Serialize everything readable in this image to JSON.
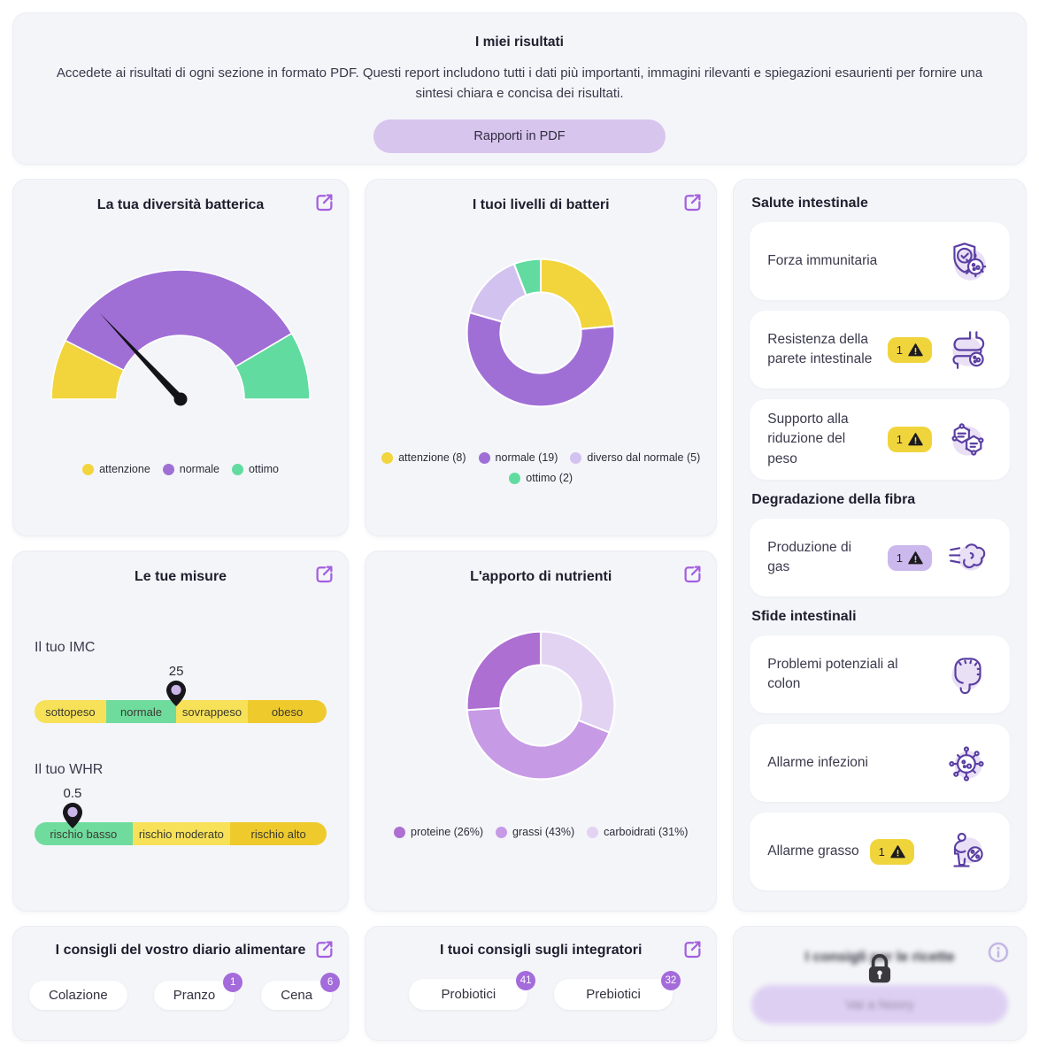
{
  "header": {
    "title": "I miei risultati",
    "description": "Accedete ai risultati di ogni sezione in formato PDF. Questi report includono tutti i dati più importanti, immagini rilevanti e spiegazioni esaurienti per fornire una sintesi chiara e concisa dei risultati.",
    "button_label": "Rapporti in PDF"
  },
  "cards": {
    "diversity": {
      "title": "La tua diversità batterica"
    },
    "levels": {
      "title": "I tuoi livelli di batteri"
    },
    "measures": {
      "title": "Le tue misure",
      "imc_label": "Il tuo IMC",
      "imc_value": "25",
      "whr_label": "Il tuo WHR",
      "whr_value": "0.5"
    },
    "nutrients": {
      "title": "L'apporto di nutrienti"
    },
    "diary": {
      "title": "I consigli del vostro diario alimentare",
      "buttons": [
        {
          "label": "Colazione",
          "badge": null
        },
        {
          "label": "Pranzo",
          "badge": "1"
        },
        {
          "label": "Cena",
          "badge": "6"
        }
      ]
    },
    "supplements": {
      "title": "I tuoi consigli sugli integratori",
      "buttons": [
        {
          "label": "Probiotici",
          "badge": "41"
        },
        {
          "label": "Prebiotici",
          "badge": "32"
        }
      ]
    },
    "locked": {
      "title": "I consigli per le ricette",
      "button_label": "Vai a Noory"
    }
  },
  "sidebar": {
    "sections": [
      {
        "header": "Salute intestinale",
        "items": [
          {
            "label": "Forza immunitaria",
            "badge": null,
            "icon": "shield-check-virus-icon"
          },
          {
            "label": "Resistenza della parete intestinale",
            "badge": "1",
            "badge_color": "yellow",
            "icon": "intestine-icon"
          },
          {
            "label": "Supporto alla riduzione del peso",
            "badge": "1",
            "badge_color": "yellow",
            "icon": "molecules-icon"
          }
        ]
      },
      {
        "header": "Degradazione della fibra",
        "items": [
          {
            "label": "Produzione di gas",
            "badge": "1",
            "badge_color": "purple",
            "icon": "gas-icon"
          }
        ]
      },
      {
        "header": "Sfide intestinali",
        "items": [
          {
            "label": "Problemi potenziali al colon",
            "badge": null,
            "icon": "colon-icon"
          },
          {
            "label": "Allarme infezioni",
            "badge": null,
            "icon": "virus-icon"
          },
          {
            "label": "Allarme grasso",
            "badge": "1",
            "badge_color": "yellow",
            "icon": "weight-scale-icon"
          }
        ]
      }
    ]
  },
  "colors": {
    "accent_purple": "#a45fe0",
    "button_lavender": "#d8c5ee",
    "badge_yellow": "#f0d43c",
    "badge_purple_light": "#cbb8ec",
    "count_badge": "#a46bdb",
    "icon_stroke": "#5a3fa3",
    "icon_halo": "#ddd0f1",
    "card_bg": "#f4f5f9"
  },
  "chart_data": [
    {
      "id": "diversity_gauge",
      "type": "gauge",
      "title": "La tua diversità batterica",
      "segments": [
        {
          "label": "attenzione",
          "fraction": 0.15,
          "color": "#f2d43d"
        },
        {
          "label": "normale",
          "fraction": 0.68,
          "color": "#a06fd6"
        },
        {
          "label": "ottimo",
          "fraction": 0.17,
          "color": "#62dba1"
        }
      ],
      "needle_fraction": 0.26,
      "legend": {
        "position": "bottom",
        "entries": [
          {
            "text": "attenzione",
            "color": "#f2d43d"
          },
          {
            "text": "normale",
            "color": "#a06fd6"
          },
          {
            "text": "ottimo",
            "color": "#62dba1"
          }
        ],
        "rows": [
          [
            0,
            1,
            2
          ]
        ]
      }
    },
    {
      "id": "bacteria_levels",
      "type": "donut",
      "title": "I tuoi livelli di batteri",
      "slices": [
        {
          "label": "attenzione",
          "value": 8,
          "color": "#f2d43d"
        },
        {
          "label": "normale",
          "value": 19,
          "color": "#a06fd6"
        },
        {
          "label": "diverso dal normale",
          "value": 5,
          "color": "#d2c2ef"
        },
        {
          "label": "ottimo",
          "value": 2,
          "color": "#62dba1"
        }
      ],
      "legend": {
        "position": "bottom",
        "entries": [
          {
            "text": "attenzione (8)",
            "color": "#f2d43d"
          },
          {
            "text": "normale (19)",
            "color": "#a06fd6"
          },
          {
            "text": "diverso dal normale (5)",
            "color": "#d2c2ef"
          },
          {
            "text": "ottimo (2)",
            "color": "#62dba1"
          }
        ],
        "rows": [
          [
            0,
            1,
            2
          ],
          [
            3
          ]
        ]
      }
    },
    {
      "id": "nutrient_intake",
      "type": "donut",
      "title": "L'apporto di nutrienti",
      "slices": [
        {
          "label": "carboidrati",
          "value": 31,
          "color": "#e3d3f3"
        },
        {
          "label": "grassi",
          "value": 43,
          "color": "#c79ae6"
        },
        {
          "label": "proteine",
          "value": 26,
          "color": "#ad6fd2"
        }
      ],
      "legend": {
        "position": "bottom",
        "entries": [
          {
            "text": "proteine (26%)",
            "color": "#ad6fd2"
          },
          {
            "text": "grassi (43%)",
            "color": "#c79ae6"
          },
          {
            "text": "carboidrati (31%)",
            "color": "#e3d3f3"
          }
        ],
        "rows": [
          [
            0,
            1,
            2
          ]
        ]
      }
    },
    {
      "id": "imc",
      "type": "range-indicator",
      "label": "Il tuo IMC",
      "value": "25",
      "pin_percent": 48.5,
      "segments": [
        {
          "label": "sottopeso",
          "percent": 24.5,
          "color": "#f6e158"
        },
        {
          "label": "normale",
          "percent": 24,
          "color": "#6fdc9e"
        },
        {
          "label": "sovrappeso",
          "percent": 24.5,
          "color": "#f6e158"
        },
        {
          "label": "obeso",
          "percent": 27,
          "color": "#eeca2d"
        }
      ]
    },
    {
      "id": "whr",
      "type": "range-indicator",
      "label": "Il tuo WHR",
      "value": "0.5",
      "pin_percent": 13,
      "segments": [
        {
          "label": "rischio basso",
          "percent": 33.5,
          "color": "#6fdc9e"
        },
        {
          "label": "rischio moderato",
          "percent": 33.5,
          "color": "#f6e158"
        },
        {
          "label": "rischio alto",
          "percent": 33,
          "color": "#eeca2d"
        }
      ]
    }
  ]
}
